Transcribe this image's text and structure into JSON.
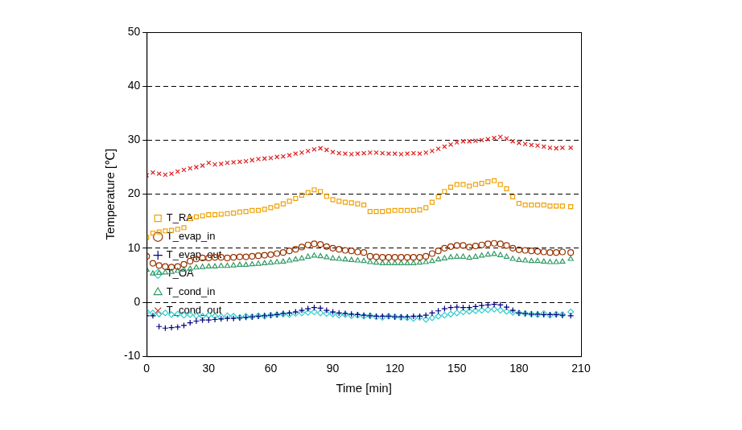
{
  "chart_data": {
    "type": "scatter",
    "x_label": "Time [min]",
    "y_label": "Temperature [℃]",
    "x": [
      0,
      3,
      6,
      9,
      12,
      15,
      18,
      21,
      24,
      27,
      30,
      33,
      36,
      39,
      42,
      45,
      48,
      51,
      54,
      57,
      60,
      63,
      66,
      69,
      72,
      75,
      78,
      81,
      84,
      87,
      90,
      93,
      96,
      99,
      102,
      105,
      108,
      111,
      114,
      117,
      120,
      123,
      126,
      129,
      132,
      135,
      138,
      141,
      144,
      147,
      150,
      153,
      156,
      159,
      162,
      165,
      168,
      171,
      174,
      177,
      180,
      183,
      186,
      189,
      192,
      195,
      198,
      201,
      205
    ],
    "xlim": [
      0,
      210
    ],
    "xticks": [
      0,
      30,
      60,
      90,
      120,
      150,
      180,
      210
    ],
    "ylim": [
      -10,
      50
    ],
    "yticks": [
      -10,
      0,
      10,
      20,
      30,
      40,
      50
    ],
    "grid": true,
    "legend": "upper right",
    "series": [
      {
        "name": "T_RA",
        "color": "#f0a000",
        "marker": "square",
        "values": [
          12,
          12.8,
          13,
          13.2,
          13.3,
          13.5,
          13.8,
          15.5,
          15.8,
          16,
          16.2,
          16.2,
          16.3,
          16.4,
          16.5,
          16.7,
          16.8,
          17,
          17,
          17.2,
          17.5,
          17.8,
          18.2,
          18.7,
          19.2,
          19.8,
          20.3,
          20.8,
          20.5,
          19.6,
          19,
          18.7,
          18.5,
          18.4,
          18.2,
          18,
          16.8,
          16.8,
          16.8,
          16.9,
          17,
          17,
          17,
          17,
          17.1,
          17.5,
          18.5,
          19.5,
          20.5,
          21.3,
          21.8,
          21.8,
          21.5,
          21.8,
          22,
          22.3,
          22.5,
          21.8,
          21,
          19.5,
          18.3,
          18,
          18,
          18,
          18,
          17.8,
          17.8,
          17.8,
          17.7
        ]
      },
      {
        "name": "T_evap_in",
        "color": "#993300",
        "marker": "circle",
        "values": [
          8.5,
          7.2,
          6.8,
          6.6,
          6.5,
          6.6,
          7,
          7.6,
          8,
          8.2,
          8.2,
          8.3,
          8.3,
          8.2,
          8.3,
          8.4,
          8.4,
          8.5,
          8.6,
          8.7,
          8.8,
          9,
          9.2,
          9.5,
          9.8,
          10.2,
          10.6,
          10.8,
          10.7,
          10.3,
          10,
          9.8,
          9.6,
          9.5,
          9.3,
          9.2,
          8.5,
          8.4,
          8.3,
          8.3,
          8.3,
          8.3,
          8.3,
          8.3,
          8.3,
          8.5,
          9,
          9.5,
          10,
          10.3,
          10.5,
          10.5,
          10.2,
          10.4,
          10.6,
          10.8,
          10.9,
          10.8,
          10.5,
          10,
          9.7,
          9.6,
          9.5,
          9.4,
          9.3,
          9.2,
          9.2,
          9.3,
          9.2
        ]
      },
      {
        "name": "T_evap_out",
        "color": "#000080",
        "marker": "plus",
        "values": [
          -2.5,
          -2.5,
          -4.5,
          -4.8,
          -4.7,
          -4.6,
          -4.3,
          -3.8,
          -3.5,
          -3.3,
          -3.3,
          -3.2,
          -3.1,
          -3,
          -3,
          -2.9,
          -2.8,
          -2.7,
          -2.6,
          -2.5,
          -2.4,
          -2.3,
          -2.1,
          -2,
          -1.8,
          -1.5,
          -1.2,
          -1,
          -1.1,
          -1.5,
          -1.8,
          -2,
          -2.1,
          -2.2,
          -2.3,
          -2.4,
          -2.5,
          -2.6,
          -2.6,
          -2.6,
          -2.7,
          -2.7,
          -2.7,
          -2.6,
          -2.6,
          -2.4,
          -2,
          -1.6,
          -1.2,
          -1,
          -0.9,
          -1,
          -1,
          -0.8,
          -0.6,
          -0.5,
          -0.4,
          -0.5,
          -0.9,
          -1.5,
          -2,
          -2.1,
          -2.2,
          -2.2,
          -2.3,
          -2.3,
          -2.3,
          -2.4,
          -2.5
        ]
      },
      {
        "name": "T_OA",
        "color": "#33cccc",
        "marker": "diamond",
        "values": [
          -1.8,
          -2,
          -2.2,
          -2,
          -2.3,
          -2.2,
          -2.4,
          -2.3,
          -2.5,
          -2.6,
          -2.4,
          -2.6,
          -2.7,
          -2.5,
          -2.6,
          -2.8,
          -2.6,
          -2.7,
          -2.5,
          -2.6,
          -2.4,
          -2.3,
          -2.2,
          -2.3,
          -2.1,
          -2,
          -1.9,
          -1.8,
          -2,
          -2.1,
          -2.2,
          -2.4,
          -2.3,
          -2.5,
          -2.4,
          -2.6,
          -2.5,
          -2.7,
          -2.8,
          -2.6,
          -2.7,
          -2.8,
          -2.9,
          -3,
          -2.8,
          -3.2,
          -2.9,
          -2.6,
          -2.4,
          -2.2,
          -2,
          -1.8,
          -1.7,
          -1.6,
          -1.5,
          -1.4,
          -1.3,
          -1.5,
          -1.7,
          -1.9,
          -2,
          -2.1,
          -2.2,
          -2.3,
          -2.1,
          -2.4,
          -2.2,
          -2.3,
          -1.8
        ]
      },
      {
        "name": "T_cond_in",
        "color": "#339966",
        "marker": "triangle",
        "values": [
          6,
          5.3,
          5.4,
          5.5,
          5.6,
          5.8,
          6,
          6.2,
          6.4,
          6.5,
          6.6,
          6.6,
          6.7,
          6.7,
          6.8,
          6.9,
          6.9,
          7,
          7.1,
          7.2,
          7.3,
          7.4,
          7.5,
          7.7,
          7.9,
          8.1,
          8.4,
          8.6,
          8.5,
          8.3,
          8.1,
          8,
          7.9,
          7.8,
          7.7,
          7.6,
          7.4,
          7.3,
          7.2,
          7.2,
          7.2,
          7.2,
          7.2,
          7.2,
          7.3,
          7.4,
          7.6,
          7.9,
          8.1,
          8.3,
          8.4,
          8.4,
          8.2,
          8.4,
          8.6,
          8.8,
          8.9,
          8.7,
          8.4,
          8,
          7.8,
          7.7,
          7.6,
          7.6,
          7.5,
          7.4,
          7.4,
          7.5,
          8
        ]
      },
      {
        "name": "T_cond_out",
        "color": "#e02020",
        "marker": "x",
        "values": [
          23.5,
          24,
          23.8,
          23.6,
          23.8,
          24.2,
          24.5,
          24.8,
          25,
          25.3,
          25.8,
          25.5,
          25.6,
          25.8,
          25.9,
          26,
          26.1,
          26.3,
          26.5,
          26.6,
          26.7,
          26.9,
          27,
          27.2,
          27.5,
          27.7,
          28,
          28.3,
          28.5,
          28.2,
          27.8,
          27.6,
          27.5,
          27.4,
          27.5,
          27.6,
          27.7,
          27.7,
          27.6,
          27.5,
          27.5,
          27.4,
          27.5,
          27.6,
          27.5,
          27.7,
          28,
          28.4,
          28.8,
          29.2,
          29.6,
          29.8,
          29.8,
          29.9,
          30,
          30.2,
          30.4,
          30.6,
          30.3,
          29.8,
          29.5,
          29.3,
          29.1,
          29,
          28.8,
          28.6,
          28.5,
          28.6,
          28.6
        ]
      }
    ]
  }
}
